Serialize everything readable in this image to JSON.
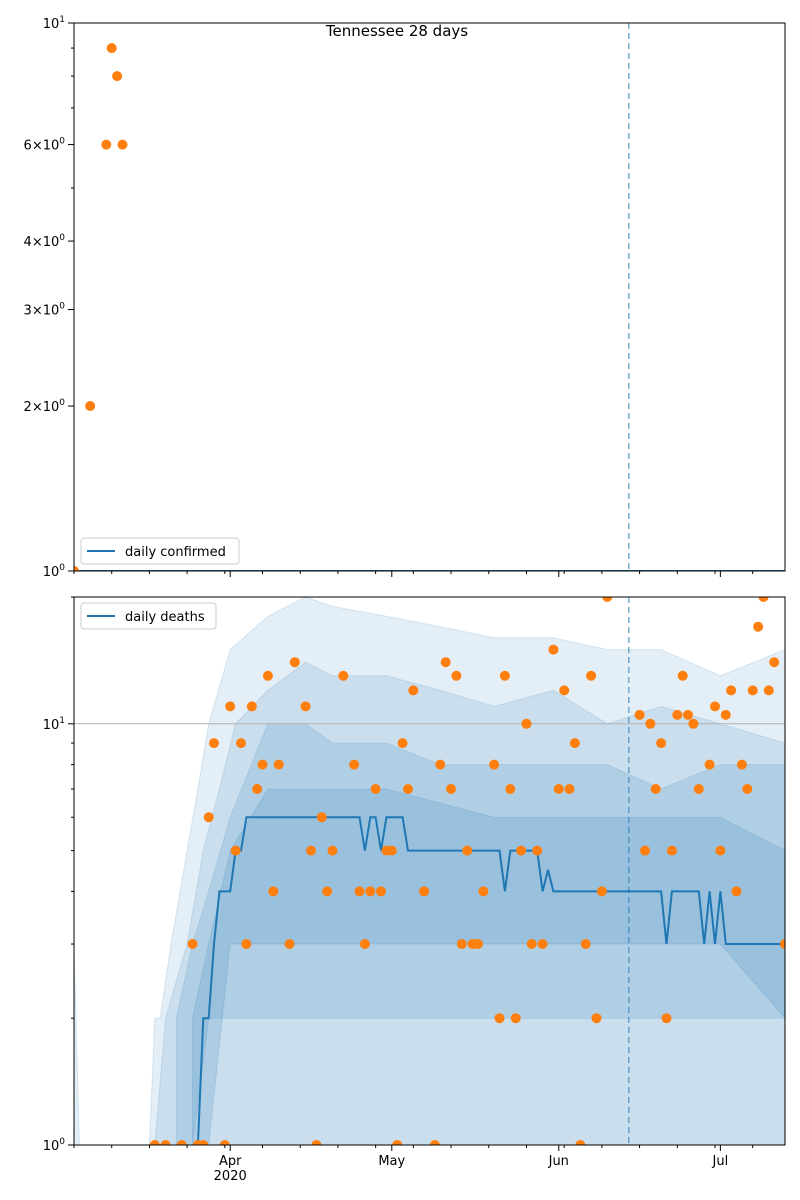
{
  "chart_data": [
    {
      "type": "scatter",
      "title": "Tennessee 28 days",
      "yscale": "log",
      "ylim": [
        1,
        10
      ],
      "xlim": [
        "2020-03-03",
        "2020-07-13"
      ],
      "grid": false,
      "legend": "bottom-left",
      "ytick_labels": [
        "10^1",
        "6×10^0",
        "4×10^0",
        "3×10^0",
        "2×10^0",
        "10^0"
      ],
      "ytick_values": [
        10,
        6,
        4,
        3,
        2,
        1
      ],
      "vline_date": "2020-06-14",
      "series": [
        {
          "name": "daily confirmed",
          "kind": "line",
          "color": "#1f77b4",
          "points": [
            [
              "2020-03-03",
              1
            ],
            [
              "2020-07-13",
              1
            ]
          ]
        },
        {
          "kind": "scatter",
          "color": "#ff7f0e",
          "points": [
            [
              "2020-03-03",
              1
            ],
            [
              "2020-03-06",
              2
            ],
            [
              "2020-03-09",
              6
            ],
            [
              "2020-03-10",
              9
            ],
            [
              "2020-03-11",
              8
            ],
            [
              "2020-03-12",
              6
            ]
          ]
        }
      ]
    },
    {
      "type": "line",
      "yscale": "log",
      "ylim": [
        1,
        20
      ],
      "xlim": [
        "2020-03-03",
        "2020-07-13"
      ],
      "legend": "top-left",
      "hline_value": 10,
      "vline_date": "2020-06-14",
      "ytick_labels": [
        "10^1",
        "10^0"
      ],
      "ytick_values": [
        10,
        1
      ],
      "xtick_labels": [
        "Apr\n2020",
        "May",
        "Jun",
        "Jul"
      ],
      "xtick_dates": [
        "2020-04-01",
        "2020-05-01",
        "2020-06-01",
        "2020-07-01"
      ],
      "band_color": "#1f77b4",
      "series": [
        {
          "name": "daily deaths",
          "kind": "line",
          "color": "#1f77b4",
          "points": [
            [
              "2020-03-26",
              1
            ],
            [
              "2020-03-27",
              2
            ],
            [
              "2020-03-28",
              2
            ],
            [
              "2020-03-29",
              3
            ],
            [
              "2020-03-30",
              4
            ],
            [
              "2020-04-01",
              4
            ],
            [
              "2020-04-02",
              5
            ],
            [
              "2020-04-03",
              5
            ],
            [
              "2020-04-04",
              6
            ],
            [
              "2020-04-25",
              6
            ],
            [
              "2020-04-26",
              5
            ],
            [
              "2020-04-27",
              6
            ],
            [
              "2020-04-28",
              6
            ],
            [
              "2020-04-29",
              5
            ],
            [
              "2020-04-30",
              6
            ],
            [
              "2020-05-03",
              6
            ],
            [
              "2020-05-04",
              5
            ],
            [
              "2020-05-21",
              5
            ],
            [
              "2020-05-22",
              4
            ],
            [
              "2020-05-23",
              5
            ],
            [
              "2020-05-28",
              5
            ],
            [
              "2020-05-29",
              4
            ],
            [
              "2020-05-30",
              4.5
            ],
            [
              "2020-05-31",
              4
            ],
            [
              "2020-06-20",
              4
            ],
            [
              "2020-06-21",
              3
            ],
            [
              "2020-06-22",
              4
            ],
            [
              "2020-06-27",
              4
            ],
            [
              "2020-06-28",
              3
            ],
            [
              "2020-06-29",
              4
            ],
            [
              "2020-06-30",
              3
            ],
            [
              "2020-07-01",
              4
            ],
            [
              "2020-07-02",
              3
            ],
            [
              "2020-07-13",
              3
            ]
          ]
        },
        {
          "kind": "scatter",
          "color": "#ff7f0e",
          "points": [
            [
              "2020-03-18",
              1
            ],
            [
              "2020-03-20",
              1
            ],
            [
              "2020-03-23",
              1
            ],
            [
              "2020-03-25",
              3
            ],
            [
              "2020-03-26",
              1
            ],
            [
              "2020-03-27",
              1
            ],
            [
              "2020-03-28",
              6
            ],
            [
              "2020-03-29",
              9
            ],
            [
              "2020-03-31",
              1
            ],
            [
              "2020-04-01",
              11
            ],
            [
              "2020-04-02",
              5
            ],
            [
              "2020-04-03",
              9
            ],
            [
              "2020-04-04",
              3
            ],
            [
              "2020-04-05",
              11
            ],
            [
              "2020-04-06",
              7
            ],
            [
              "2020-04-07",
              8
            ],
            [
              "2020-04-08",
              13
            ],
            [
              "2020-04-09",
              4
            ],
            [
              "2020-04-10",
              8
            ],
            [
              "2020-04-12",
              3
            ],
            [
              "2020-04-13",
              14
            ],
            [
              "2020-04-15",
              11
            ],
            [
              "2020-04-16",
              5
            ],
            [
              "2020-04-17",
              1
            ],
            [
              "2020-04-18",
              6
            ],
            [
              "2020-04-19",
              4
            ],
            [
              "2020-04-20",
              5
            ],
            [
              "2020-04-22",
              13
            ],
            [
              "2020-04-24",
              8
            ],
            [
              "2020-04-25",
              4
            ],
            [
              "2020-04-26",
              3
            ],
            [
              "2020-04-27",
              4
            ],
            [
              "2020-04-28",
              7
            ],
            [
              "2020-04-29",
              4
            ],
            [
              "2020-04-30",
              5
            ],
            [
              "2020-05-01",
              5
            ],
            [
              "2020-05-02",
              1
            ],
            [
              "2020-05-03",
              9
            ],
            [
              "2020-05-04",
              7
            ],
            [
              "2020-05-05",
              12
            ],
            [
              "2020-05-07",
              4
            ],
            [
              "2020-05-09",
              1
            ],
            [
              "2020-05-10",
              8
            ],
            [
              "2020-05-11",
              14
            ],
            [
              "2020-05-12",
              7
            ],
            [
              "2020-05-13",
              13
            ],
            [
              "2020-05-14",
              3
            ],
            [
              "2020-05-15",
              5
            ],
            [
              "2020-05-16",
              3
            ],
            [
              "2020-05-17",
              3
            ],
            [
              "2020-05-18",
              4
            ],
            [
              "2020-05-20",
              8
            ],
            [
              "2020-05-21",
              2
            ],
            [
              "2020-05-22",
              13
            ],
            [
              "2020-05-23",
              7
            ],
            [
              "2020-05-24",
              2
            ],
            [
              "2020-05-25",
              5
            ],
            [
              "2020-05-26",
              10
            ],
            [
              "2020-05-27",
              3
            ],
            [
              "2020-05-28",
              5
            ],
            [
              "2020-05-29",
              3
            ],
            [
              "2020-05-31",
              15
            ],
            [
              "2020-06-01",
              7
            ],
            [
              "2020-06-02",
              12
            ],
            [
              "2020-06-03",
              7
            ],
            [
              "2020-06-04",
              9
            ],
            [
              "2020-06-05",
              1
            ],
            [
              "2020-06-06",
              3
            ],
            [
              "2020-06-07",
              13
            ],
            [
              "2020-06-08",
              2
            ],
            [
              "2020-06-09",
              4
            ],
            [
              "2020-06-10",
              20
            ],
            [
              "2020-06-16",
              10.5
            ],
            [
              "2020-06-17",
              5
            ],
            [
              "2020-06-18",
              10
            ],
            [
              "2020-06-19",
              7
            ],
            [
              "2020-06-20",
              9
            ],
            [
              "2020-06-21",
              2
            ],
            [
              "2020-06-22",
              5
            ],
            [
              "2020-06-23",
              10.5
            ],
            [
              "2020-06-24",
              13
            ],
            [
              "2020-06-25",
              10.5
            ],
            [
              "2020-06-26",
              10
            ],
            [
              "2020-06-27",
              7
            ],
            [
              "2020-06-29",
              8
            ],
            [
              "2020-06-30",
              11
            ],
            [
              "2020-07-01",
              5
            ],
            [
              "2020-07-02",
              10.5
            ],
            [
              "2020-07-03",
              12
            ],
            [
              "2020-07-04",
              4
            ],
            [
              "2020-07-05",
              8
            ],
            [
              "2020-07-06",
              7
            ],
            [
              "2020-07-07",
              12
            ],
            [
              "2020-07-08",
              17
            ],
            [
              "2020-07-09",
              20
            ],
            [
              "2020-07-10",
              12
            ],
            [
              "2020-07-11",
              14
            ],
            [
              "2020-07-13",
              3
            ]
          ]
        }
      ],
      "bands": [
        {
          "name": "outer",
          "dates": [
            "2020-03-03",
            "2020-03-04",
            "2020-03-17",
            "2020-03-18",
            "2020-03-19",
            "2020-03-21",
            "2020-03-24",
            "2020-03-26",
            "2020-03-28",
            "2020-04-01",
            "2020-04-08",
            "2020-04-15",
            "2020-04-20",
            "2020-04-30",
            "2020-05-10",
            "2020-05-20",
            "2020-05-31",
            "2020-06-10",
            "2020-06-20",
            "2020-07-01",
            "2020-07-13"
          ],
          "lower": [
            1,
            1,
            1,
            1,
            1,
            1,
            1,
            1,
            1,
            1,
            1,
            1,
            1,
            1,
            1,
            1,
            1,
            1,
            1,
            1,
            1
          ],
          "upper": [
            3,
            1,
            1,
            2,
            2,
            3,
            5,
            7,
            10,
            15,
            18,
            20,
            19,
            18,
            17,
            16,
            16,
            15,
            15,
            13,
            15
          ]
        },
        {
          "name": "middle",
          "dates": [
            "2020-03-18",
            "2020-03-20",
            "2020-03-24",
            "2020-03-27",
            "2020-03-30",
            "2020-04-02",
            "2020-04-08",
            "2020-04-15",
            "2020-04-20",
            "2020-04-30",
            "2020-05-10",
            "2020-05-20",
            "2020-05-31",
            "2020-06-10",
            "2020-06-20",
            "2020-07-01",
            "2020-07-13"
          ],
          "lower": [
            1,
            1,
            1,
            1,
            1,
            1,
            1,
            1,
            1,
            1,
            1,
            1,
            1,
            1,
            1,
            1,
            1
          ],
          "upper": [
            1,
            2,
            3,
            5,
            7,
            10,
            12,
            14,
            13,
            13,
            12,
            11,
            12,
            10,
            11,
            10,
            9
          ]
        },
        {
          "name": "inner",
          "dates": [
            "2020-03-22",
            "2020-03-25",
            "2020-03-28",
            "2020-04-01",
            "2020-04-08",
            "2020-04-15",
            "2020-04-20",
            "2020-04-30",
            "2020-05-10",
            "2020-05-20",
            "2020-05-31",
            "2020-06-10",
            "2020-06-20",
            "2020-07-01",
            "2020-07-13"
          ],
          "lower": [
            1,
            1,
            2,
            2,
            2,
            2,
            2,
            2,
            2,
            2,
            2,
            2,
            2,
            2,
            2
          ],
          "upper": [
            2,
            3,
            4,
            6,
            10,
            10,
            9,
            9,
            8,
            8,
            8,
            8,
            7,
            8,
            8
          ]
        },
        {
          "name": "core",
          "dates": [
            "2020-03-25",
            "2020-03-28",
            "2020-04-01",
            "2020-04-08",
            "2020-04-15",
            "2020-04-30",
            "2020-05-20",
            "2020-06-10",
            "2020-07-01",
            "2020-07-13"
          ],
          "lower": [
            1,
            1,
            3,
            3,
            3,
            3,
            3,
            3,
            3,
            2
          ],
          "upper": [
            2,
            3,
            5,
            7,
            7,
            7,
            6,
            6,
            6,
            5
          ]
        }
      ]
    }
  ]
}
